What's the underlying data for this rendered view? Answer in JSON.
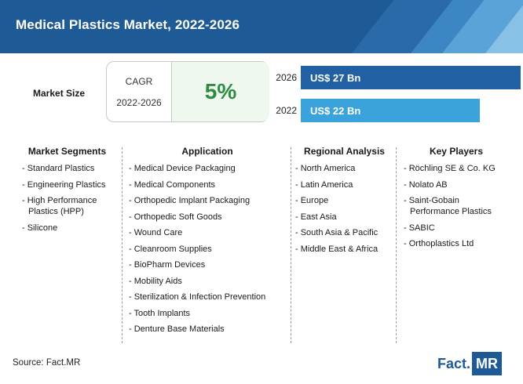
{
  "header": {
    "title": "Medical Plastics Market, 2022-2026"
  },
  "market_size": {
    "label": "Market Size",
    "cagr_label": "CAGR",
    "cagr_period": "2022-2026",
    "cagr_value": "5%"
  },
  "colors": {
    "header_bg": "#1e5a96",
    "bar_2026": "#2160a3",
    "bar_2022": "#3aa3dc",
    "cagr_green": "#2f8a43"
  },
  "chart_data": {
    "type": "bar",
    "orientation": "horizontal",
    "categories": [
      "2026",
      "2022"
    ],
    "values": [
      27,
      22
    ],
    "value_labels": [
      "US$ 27 Bn",
      "US$ 22 Bn"
    ]
  },
  "segments": {
    "market_segments": {
      "title": "Market Segments",
      "items": [
        "- Standard Plastics",
        "- Engineering Plastics",
        "- High Performance",
        "Plastics (HPP)",
        "- Silicone"
      ]
    },
    "application": {
      "title": "Application",
      "items": [
        "- Medical Device Packaging",
        "- Medical Components",
        "- Orthopedic Implant Packaging",
        "- Orthopedic Soft Goods",
        "- Wound Care",
        "- Cleanroom Supplies",
        "- BioPharm Devices",
        "- Mobility Aids",
        "- Sterilization & Infection Prevention",
        "- Tooth Implants",
        "- Denture Base Materials"
      ]
    },
    "regional_analysis": {
      "title": "Regional Analysis",
      "items": [
        "- North America",
        "- Latin America",
        "- Europe",
        "- East Asia",
        "- South Asia & Pacific",
        "- Middle East & Africa"
      ]
    },
    "key_players": {
      "title": "Key Players",
      "items": [
        "- Röchling SE & Co. KG",
        "- Nolato AB",
        "- Saint-Gobain",
        "Performance Plastics",
        "- SABIC",
        "- Orthoplastics Ltd"
      ]
    }
  },
  "footer": {
    "source": "Source: Fact.MR",
    "logo_left": "Fact.",
    "logo_right": "MR"
  }
}
